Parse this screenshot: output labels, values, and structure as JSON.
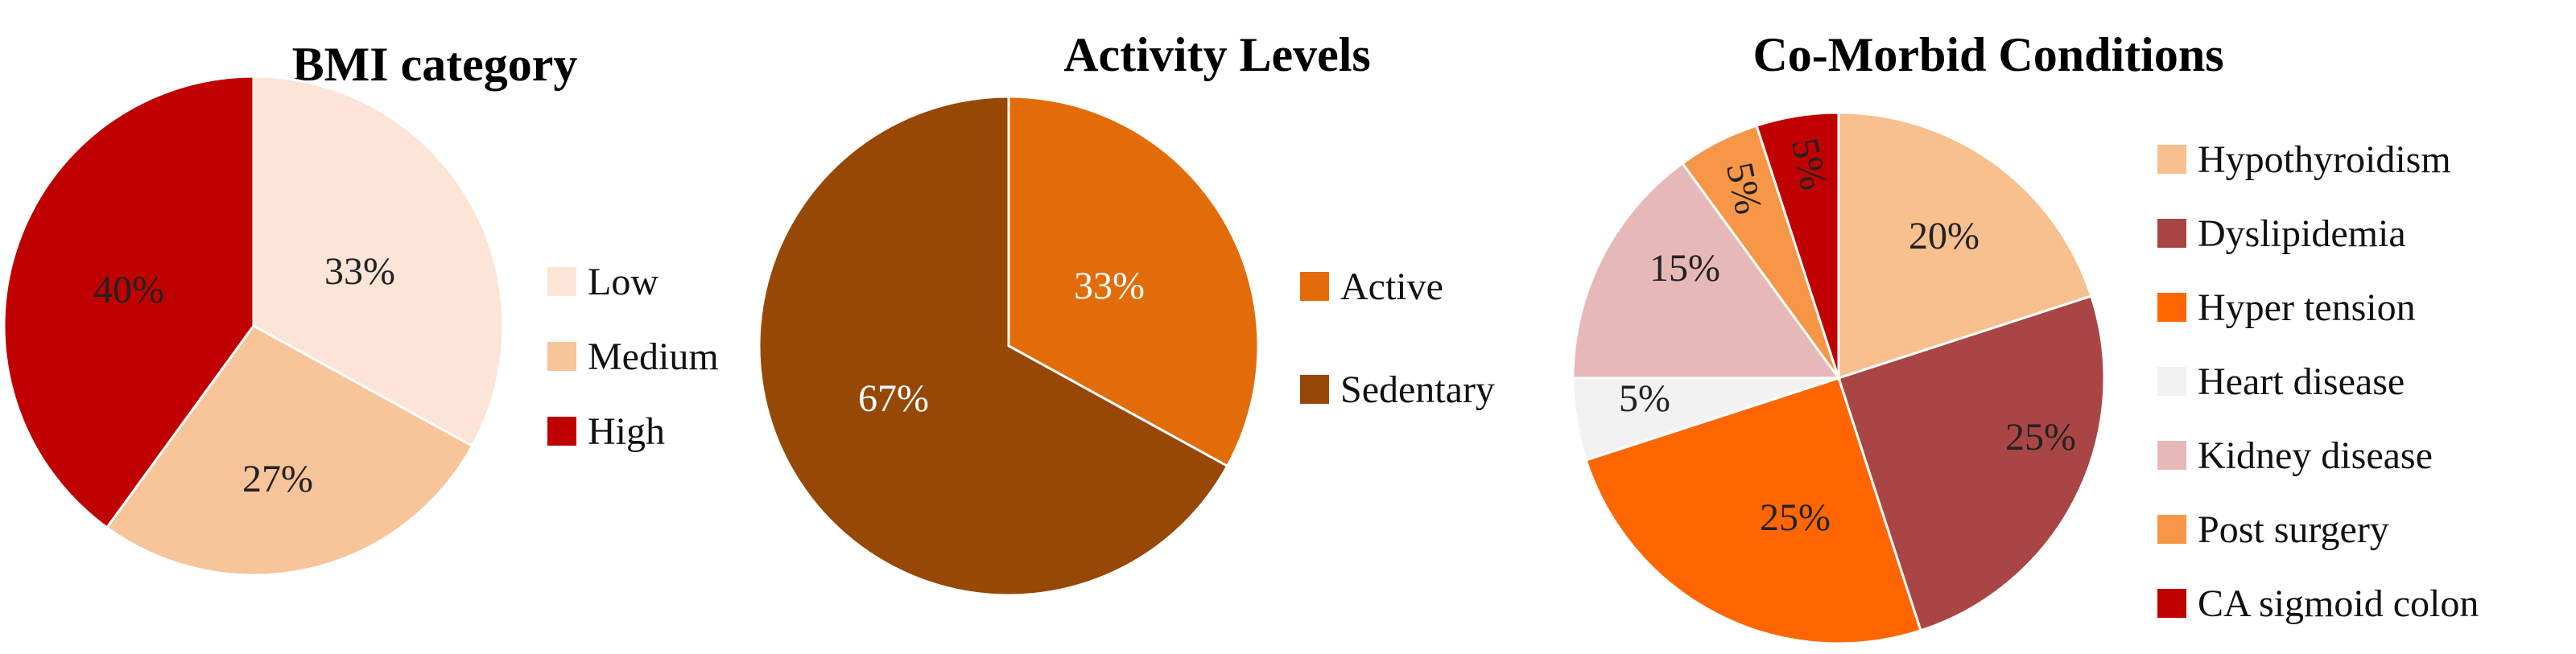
{
  "chart_data": [
    {
      "type": "pie",
      "title": "BMI category",
      "categories": [
        "Low",
        "Medium",
        "High"
      ],
      "values": [
        33,
        27,
        40
      ],
      "labels": [
        "33%",
        "27%",
        "40%"
      ],
      "colors": [
        "#FCE4D6",
        "#F8C49A",
        "#C00000"
      ],
      "label_colors": [
        "#222222",
        "#222222",
        "#222222"
      ],
      "legend_position": "right"
    },
    {
      "type": "pie",
      "title": "Activity Levels",
      "categories": [
        "Active",
        "Sedentary"
      ],
      "values": [
        33,
        67
      ],
      "labels": [
        "33%",
        "67%"
      ],
      "colors": [
        "#E36C0A",
        "#974806"
      ],
      "label_colors": [
        "#ffffff",
        "#ffffff"
      ],
      "legend_position": "right"
    },
    {
      "type": "pie",
      "title": "Co-Morbid Conditions",
      "categories": [
        "Hypothyroidism",
        "Dyslipidemia",
        "Hyper tension",
        "Heart disease",
        "Kidney disease",
        "Post surgery",
        "CA sigmoid colon"
      ],
      "values": [
        20,
        25,
        25,
        5,
        15,
        5,
        5
      ],
      "labels": [
        "20%",
        "25%",
        "25%",
        "5%",
        "15%",
        "5%",
        "5%"
      ],
      "colors": [
        "#F8BF8F",
        "#AA4545",
        "#FF6600",
        "#F2F2F2",
        "#E6B9B8",
        "#F79646",
        "#C00000"
      ],
      "label_colors": [
        "#222222",
        "#222222",
        "#222222",
        "#222222",
        "#222222",
        "#222222",
        "#222222"
      ],
      "legend_position": "right"
    }
  ]
}
